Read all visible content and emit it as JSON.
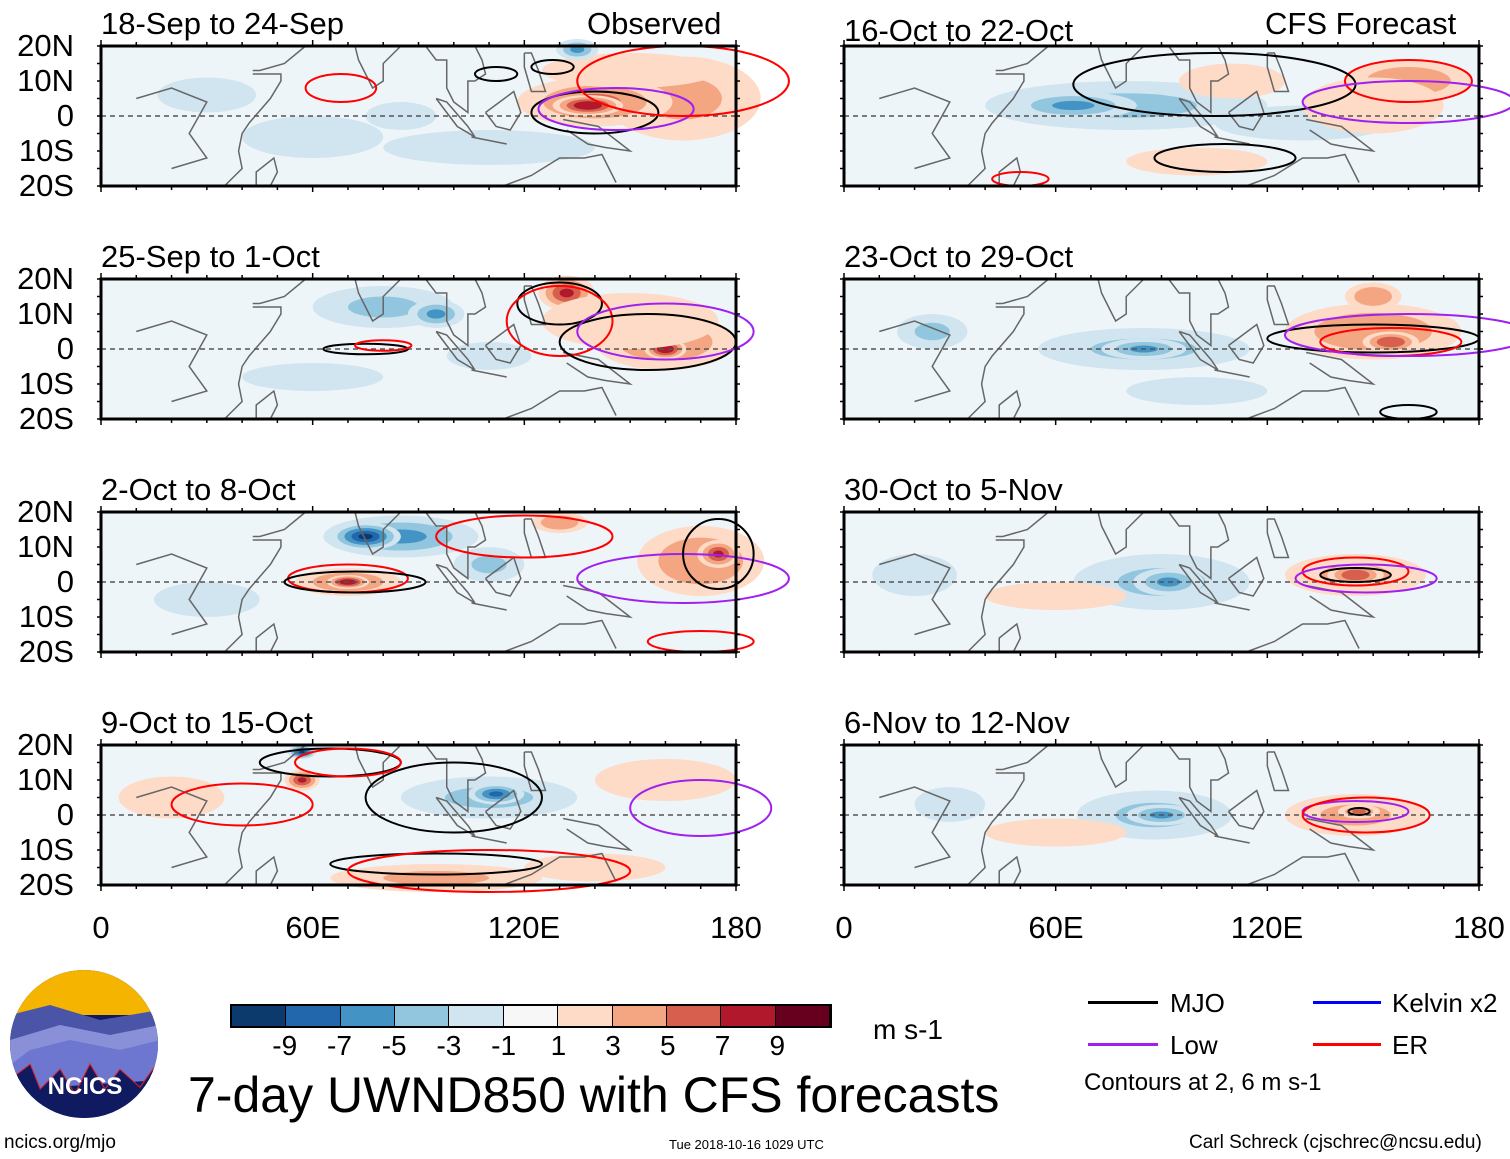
{
  "headers": {
    "observed": "Observed",
    "forecast": "CFS Forecast"
  },
  "lat_labels": [
    "20N",
    "10N",
    "0",
    "10S",
    "20S"
  ],
  "lon_labels": [
    "0",
    "60E",
    "120E",
    "180"
  ],
  "title": "7-day UWND850 with CFS forecasts",
  "units": "m s-1",
  "colorbar": {
    "labels": [
      "-9",
      "-7",
      "-5",
      "-3",
      "-1",
      "1",
      "3",
      "5",
      "7",
      "9"
    ],
    "colors": [
      "#0c3a6d",
      "#2266ab",
      "#4394c4",
      "#92c6de",
      "#d1e5f0",
      "#f7f7f7",
      "#fddbc7",
      "#f4a582",
      "#d6604d",
      "#b2182b",
      "#67001f"
    ]
  },
  "legend": {
    "items": [
      {
        "label": "MJO",
        "color": "#000000"
      },
      {
        "label": "Kelvin x2",
        "color": "#0000ff"
      },
      {
        "label": "Low",
        "color": "#a020f0"
      },
      {
        "label": "ER",
        "color": "#ff0000"
      }
    ],
    "note": "Contours at 2, 6 m s-1"
  },
  "footer": {
    "left": "ncics.org/mjo",
    "center": "Tue 2018-10-16 1029 UTC",
    "right": "Carl Schreck (cjschrec@ncsu.edu)"
  },
  "logo_text": "NCICS",
  "chart_data": {
    "type": "heatmap",
    "xlim": [
      0,
      180
    ],
    "ylim": [
      -20,
      20
    ],
    "panels": [
      {
        "title": "18-Sep to 24-Sep",
        "kind": "observed",
        "anomalies": [
          [
            165,
            5,
            22,
            12,
            4
          ],
          [
            140,
            4,
            22,
            7,
            6
          ],
          [
            138,
            3,
            10,
            3,
            9
          ],
          [
            150,
            13,
            25,
            5,
            3
          ],
          [
            30,
            6,
            14,
            5,
            -2
          ],
          [
            60,
            -6,
            20,
            6,
            -2
          ],
          [
            110,
            -9,
            30,
            5,
            -2
          ],
          [
            135,
            19,
            6,
            3,
            -6
          ],
          [
            85,
            0,
            10,
            4,
            -2
          ]
        ],
        "contours": [
          [
            "ER",
            68,
            8,
            10,
            4
          ],
          [
            "MJO",
            112,
            12,
            6,
            2
          ],
          [
            "MJO",
            128,
            14,
            6,
            2
          ],
          [
            "MJO",
            140,
            1,
            18,
            6
          ],
          [
            "Low",
            146,
            2,
            22,
            6
          ],
          [
            "ER",
            165,
            10,
            30,
            10
          ]
        ]
      },
      {
        "title": "25-Sep to 1-Oct",
        "kind": "observed",
        "anomalies": [
          [
            132,
            16,
            8,
            5,
            8
          ],
          [
            160,
            2,
            20,
            8,
            5
          ],
          [
            160,
            0,
            6,
            3,
            9
          ],
          [
            150,
            8,
            25,
            8,
            3
          ],
          [
            80,
            12,
            20,
            6,
            -4
          ],
          [
            95,
            10,
            8,
            4,
            -6
          ],
          [
            60,
            -8,
            20,
            4,
            -2
          ],
          [
            110,
            -2,
            12,
            4,
            -2
          ]
        ],
        "contours": [
          [
            "MJO",
            130,
            13,
            12,
            6
          ],
          [
            "ER",
            130,
            8,
            15,
            10
          ],
          [
            "MJO",
            155,
            2,
            25,
            8
          ],
          [
            "Low",
            160,
            5,
            25,
            8
          ],
          [
            "MJO",
            75,
            0,
            12,
            1.5
          ],
          [
            "ER",
            80,
            1,
            8,
            1.5
          ]
        ]
      },
      {
        "title": "2-Oct to 8-Oct",
        "kind": "observed",
        "anomalies": [
          [
            70,
            0,
            15,
            4,
            6
          ],
          [
            70,
            0,
            6,
            2,
            9
          ],
          [
            85,
            13,
            22,
            6,
            -6
          ],
          [
            75,
            13,
            10,
            4,
            -9
          ],
          [
            170,
            6,
            18,
            10,
            5
          ],
          [
            175,
            8,
            6,
            4,
            8
          ],
          [
            130,
            17,
            8,
            3,
            5
          ],
          [
            110,
            5,
            10,
            5,
            -3
          ],
          [
            30,
            -5,
            15,
            5,
            -2
          ]
        ],
        "contours": [
          [
            "ER",
            70,
            1,
            17,
            4
          ],
          [
            "MJO",
            72,
            0,
            20,
            3
          ],
          [
            "ER",
            120,
            13,
            25,
            6
          ],
          [
            "Low",
            165,
            1,
            30,
            7
          ],
          [
            "MJO",
            175,
            8,
            10,
            10
          ],
          [
            "ER",
            170,
            -17,
            15,
            3
          ]
        ]
      },
      {
        "title": "9-Oct to 15-Oct",
        "kind": "observed",
        "anomalies": [
          [
            57,
            10,
            5,
            3,
            8
          ],
          [
            57,
            18,
            4,
            2,
            -9
          ],
          [
            110,
            5,
            25,
            6,
            -4
          ],
          [
            112,
            6,
            8,
            3,
            -7
          ],
          [
            95,
            -18,
            30,
            4,
            4
          ],
          [
            20,
            5,
            15,
            6,
            2
          ],
          [
            140,
            -15,
            20,
            4,
            2
          ],
          [
            160,
            10,
            20,
            6,
            2
          ]
        ],
        "contours": [
          [
            "MJO",
            65,
            15,
            20,
            4
          ],
          [
            "ER",
            70,
            15,
            15,
            4
          ],
          [
            "MJO",
            100,
            5,
            25,
            10
          ],
          [
            "ER",
            40,
            3,
            20,
            6
          ],
          [
            "MJO",
            95,
            -14,
            30,
            3
          ],
          [
            "ER",
            110,
            -16,
            40,
            6
          ],
          [
            "Low",
            170,
            2,
            20,
            8
          ]
        ]
      },
      {
        "title": "16-Oct to 22-Oct",
        "kind": "forecast",
        "anomalies": [
          [
            80,
            3,
            40,
            7,
            -4
          ],
          [
            65,
            3,
            18,
            4,
            -6
          ],
          [
            130,
            -2,
            25,
            5,
            -2
          ],
          [
            160,
            10,
            18,
            6,
            5
          ],
          [
            100,
            -13,
            20,
            4,
            3
          ],
          [
            150,
            3,
            20,
            8,
            2
          ],
          [
            110,
            10,
            15,
            5,
            2
          ]
        ],
        "contours": [
          [
            "ER",
            160,
            10,
            18,
            6
          ],
          [
            "MJO",
            105,
            9,
            40,
            9
          ],
          [
            "MJO",
            108,
            -12,
            20,
            4
          ],
          [
            "Low",
            160,
            4,
            30,
            6
          ],
          [
            "ER",
            50,
            -18,
            8,
            2
          ]
        ]
      },
      {
        "title": "23-Oct to 29-Oct",
        "kind": "forecast",
        "anomalies": [
          [
            85,
            0,
            30,
            6,
            -3
          ],
          [
            85,
            0,
            12,
            3,
            -6
          ],
          [
            25,
            5,
            10,
            5,
            -4
          ],
          [
            150,
            5,
            25,
            8,
            5
          ],
          [
            155,
            2,
            8,
            3,
            7
          ],
          [
            100,
            -12,
            20,
            4,
            -2
          ],
          [
            150,
            15,
            8,
            4,
            5
          ]
        ],
        "contours": [
          [
            "MJO",
            150,
            3,
            30,
            4
          ],
          [
            "ER",
            155,
            2,
            20,
            4
          ],
          [
            "Low",
            160,
            4,
            35,
            6
          ],
          [
            "MJO",
            160,
            -18,
            8,
            2
          ]
        ]
      },
      {
        "title": "30-Oct to 5-Nov",
        "kind": "forecast",
        "anomalies": [
          [
            90,
            0,
            25,
            8,
            -4
          ],
          [
            92,
            0,
            10,
            4,
            -6
          ],
          [
            145,
            2,
            20,
            6,
            4
          ],
          [
            145,
            2,
            8,
            3,
            7
          ],
          [
            60,
            -4,
            20,
            4,
            2
          ],
          [
            20,
            2,
            12,
            6,
            -2
          ]
        ],
        "contours": [
          [
            "ER",
            145,
            3,
            15,
            4
          ],
          [
            "Low",
            148,
            1,
            20,
            4
          ],
          [
            "MJO",
            145,
            2,
            10,
            2
          ]
        ]
      },
      {
        "title": "6-Nov to 12-Nov",
        "kind": "forecast",
        "anomalies": [
          [
            88,
            0,
            22,
            7,
            -4
          ],
          [
            90,
            0,
            10,
            3,
            -5
          ],
          [
            145,
            0,
            20,
            6,
            4
          ],
          [
            146,
            1,
            6,
            2,
            6
          ],
          [
            60,
            -5,
            20,
            4,
            2
          ],
          [
            30,
            3,
            10,
            5,
            -2
          ]
        ],
        "contours": [
          [
            "Low",
            145,
            1,
            15,
            3
          ],
          [
            "ER",
            148,
            0,
            18,
            5
          ],
          [
            "MJO",
            146,
            1,
            3,
            1
          ]
        ]
      }
    ]
  }
}
